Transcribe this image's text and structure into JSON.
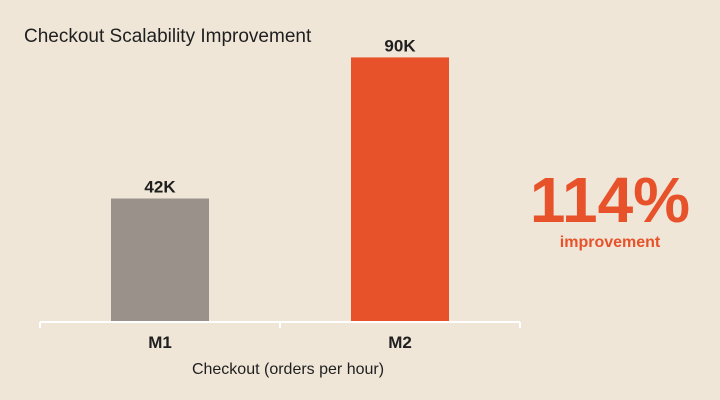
{
  "chart_data": {
    "type": "bar",
    "title": "Checkout Scalability Improvement",
    "xlabel": "Checkout (orders per hour)",
    "ylabel": "",
    "categories": [
      "M1",
      "M2"
    ],
    "values": [
      42000,
      90000
    ],
    "value_labels": [
      "42K",
      "90K"
    ],
    "colors": [
      "#9a928a",
      "#e8522a"
    ],
    "ylim": [
      0,
      100000
    ],
    "grid": false,
    "legend": "none"
  },
  "callout": {
    "value": "114%",
    "label": "improvement",
    "color": "#e8522a"
  },
  "colors": {
    "background": "#efe6d8",
    "axis": "#ffffff",
    "text": "#1f1f1f"
  }
}
